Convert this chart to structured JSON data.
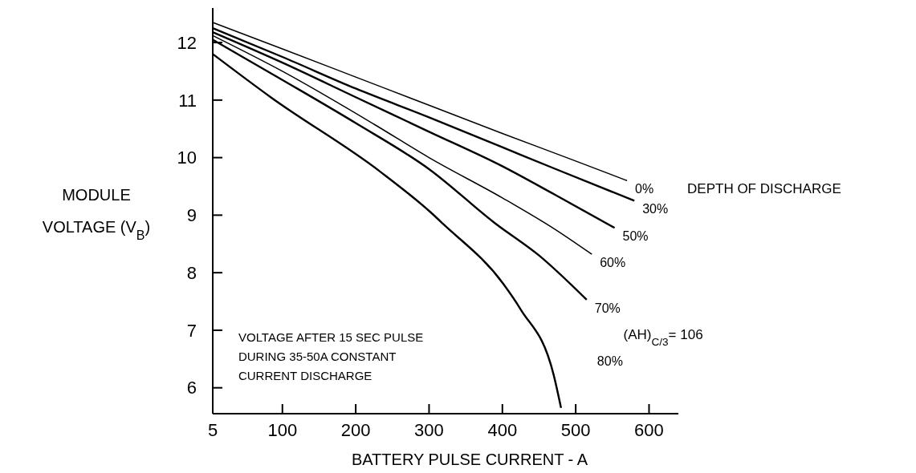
{
  "chart_data": {
    "type": "line",
    "xlabel": "BATTERY PULSE CURRENT  - A",
    "ylabel": "MODULE VOLTAGE (V$_{B}$)",
    "legend_title": "DEPTH OF DISCHARGE",
    "xlim": [
      5,
      640
    ],
    "xticks": [
      5,
      100,
      200,
      300,
      400,
      500,
      600
    ],
    "ylim": [
      5.55,
      12.6
    ],
    "yticks": [
      6,
      7,
      8,
      9,
      10,
      11,
      12
    ],
    "grid": false,
    "marker": "none",
    "line_style": "solid",
    "series": [
      {
        "name": "0%",
        "color": "#000000",
        "x": [
          5,
          100,
          200,
          300,
          400,
          500,
          570
        ],
        "values": [
          12.35,
          11.89,
          11.4,
          10.91,
          10.42,
          9.94,
          9.6
        ]
      },
      {
        "name": "30%",
        "color": "#000000",
        "x": [
          5,
          100,
          200,
          300,
          400,
          471,
          580
        ],
        "values": [
          12.25,
          11.75,
          11.2,
          10.7,
          10.18,
          9.81,
          9.25
        ]
      },
      {
        "name": "50%",
        "color": "#000000",
        "x": [
          5,
          100,
          200,
          300,
          400,
          471,
          553
        ],
        "values": [
          12.18,
          11.65,
          11.05,
          10.45,
          9.85,
          9.36,
          8.78
        ]
      },
      {
        "name": "60%",
        "color": "#000000",
        "x": [
          5,
          100,
          225,
          300,
          400,
          471,
          522
        ],
        "values": [
          12.12,
          11.5,
          10.58,
          10.0,
          9.3,
          8.76,
          8.32
        ]
      },
      {
        "name": "70%",
        "color": "#000000",
        "x": [
          5,
          100,
          200,
          300,
          390,
          450,
          515
        ],
        "values": [
          12.05,
          11.35,
          10.6,
          9.8,
          8.86,
          8.3,
          7.53
        ]
      },
      {
        "name": "80%",
        "color": "#000000",
        "x": [
          5,
          84,
          233,
          303,
          319,
          401,
          425,
          470,
          480
        ],
        "values": [
          11.8,
          11.05,
          9.76,
          9.04,
          8.85,
          7.81,
          7.36,
          6.22,
          5.65
        ]
      }
    ],
    "annotations": [
      "VOLTAGE AFTER 15 SEC PULSE\nDURING 35-50A CONSTANT\nCURRENT DISCHARGE",
      "(AH)$_{C/3}$= 106"
    ]
  }
}
